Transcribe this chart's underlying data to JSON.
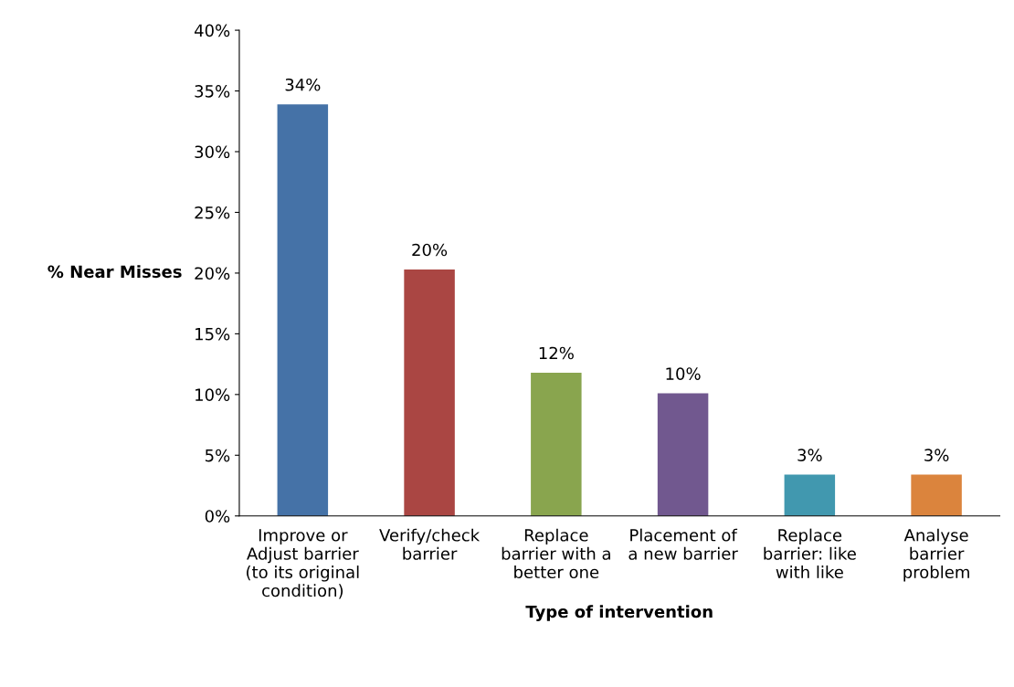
{
  "chart_data": {
    "type": "bar",
    "xlabel": "Type of intervention",
    "ylabel": "% Near Misses",
    "categories": [
      "Improve or\nAdjust barrier\n(to its original\ncondition)",
      "Verify/check\nbarrier",
      "Replace\nbarrier with a\nbetter one",
      "Placement of\na new barrier",
      "Replace\nbarrier: like\nwith like",
      "Analyse\nbarrier\nproblem"
    ],
    "values": [
      33.9,
      20.3,
      11.8,
      10.1,
      3.4,
      3.4
    ],
    "value_labels": [
      "34%",
      "20%",
      "12%",
      "10%",
      "3%",
      "3%"
    ],
    "colors": [
      "#4572a7",
      "#aa4643",
      "#89a54e",
      "#71588f",
      "#4198af",
      "#db843d"
    ],
    "ylim": [
      0,
      40
    ],
    "yticks": [
      {
        "value": 0,
        "label": "0%"
      },
      {
        "value": 5,
        "label": "5%"
      },
      {
        "value": 10,
        "label": "10%"
      },
      {
        "value": 15,
        "label": "15%"
      },
      {
        "value": 20,
        "label": "20%"
      },
      {
        "value": 25,
        "label": "25%"
      },
      {
        "value": 30,
        "label": "30%"
      },
      {
        "value": 35,
        "label": "35%"
      },
      {
        "value": 40,
        "label": "40%"
      }
    ],
    "grid": false,
    "legend": false
  }
}
